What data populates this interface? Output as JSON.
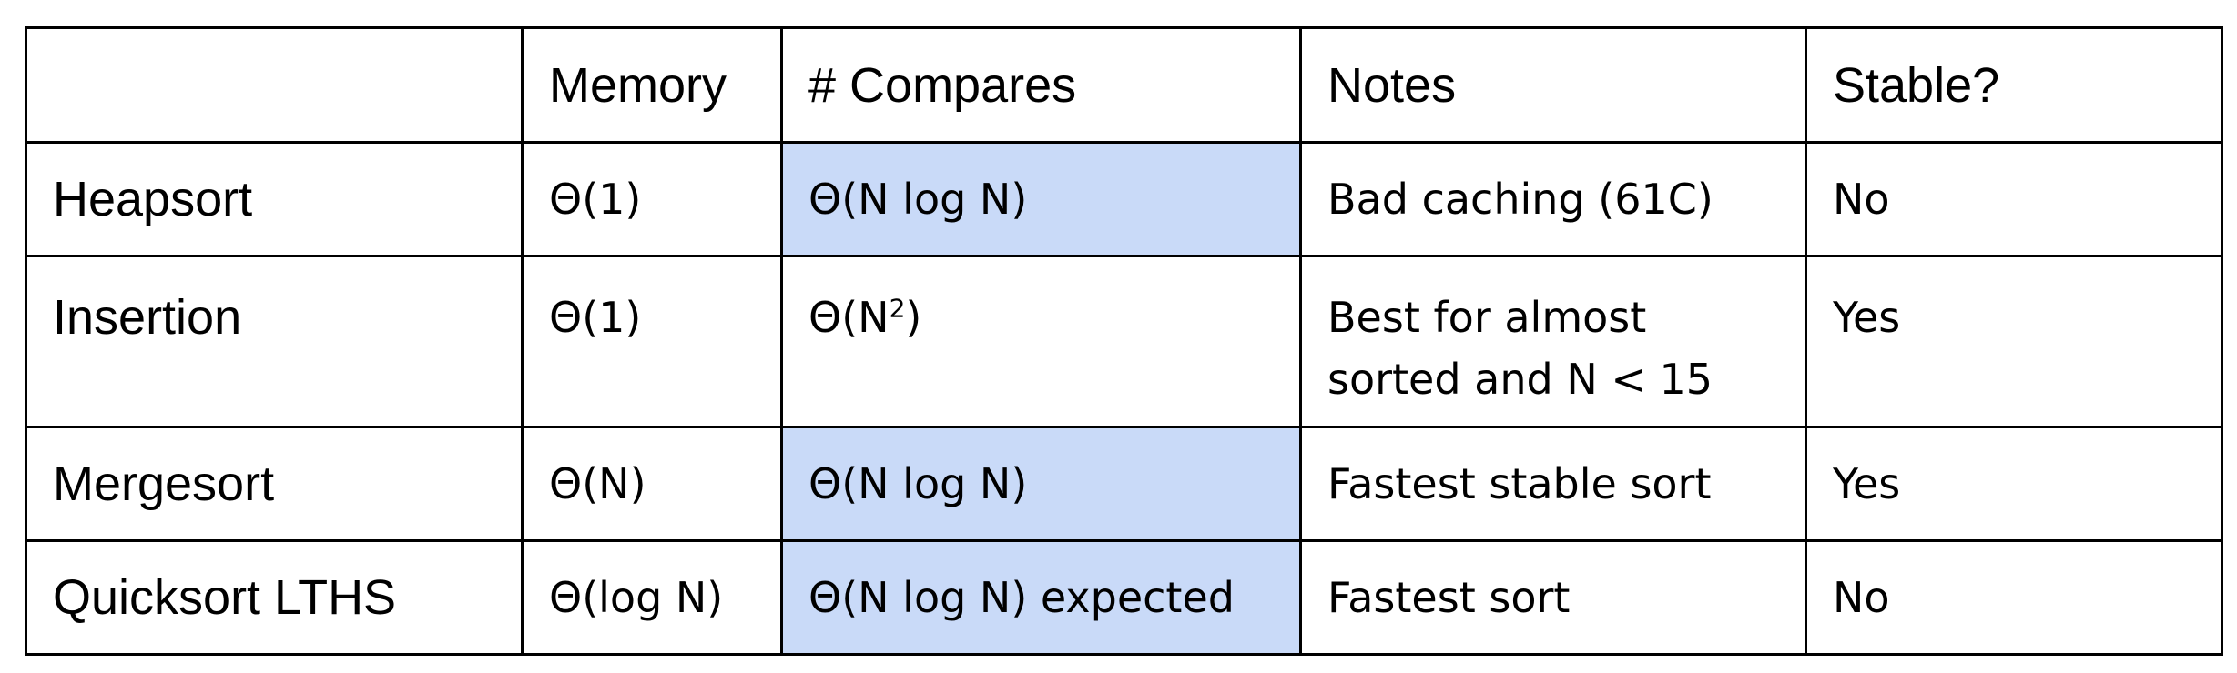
{
  "table": {
    "headers": [
      "",
      "Memory",
      "# Compares",
      "Notes",
      "Stable?"
    ],
    "rows": [
      {
        "algorithm": "Heapsort",
        "memory": "Θ(1)",
        "compares": "Θ(N log N)",
        "compares_highlighted": true,
        "notes": "Bad caching (61C)",
        "stable": "No"
      },
      {
        "algorithm": "Insertion",
        "memory": "Θ(1)",
        "compares_base": "Θ(N",
        "compares_exponent": "2",
        "compares_close": ")",
        "compares_highlighted": false,
        "notes_line1": "Best for almost",
        "notes_line2": "sorted and N < 15",
        "stable": "Yes"
      },
      {
        "algorithm": "Mergesort",
        "memory": "Θ(N)",
        "compares": "Θ(N log N)",
        "compares_highlighted": true,
        "notes": "Fastest stable sort",
        "stable": "Yes"
      },
      {
        "algorithm": "Quicksort LTHS",
        "memory": "Θ(log N)",
        "compares": "Θ(N log N) expected",
        "compares_highlighted": true,
        "notes": "Fastest sort",
        "stable": "No"
      }
    ]
  },
  "colors": {
    "highlight": "#c9daf8",
    "border": "#000000",
    "text": "#000000"
  }
}
